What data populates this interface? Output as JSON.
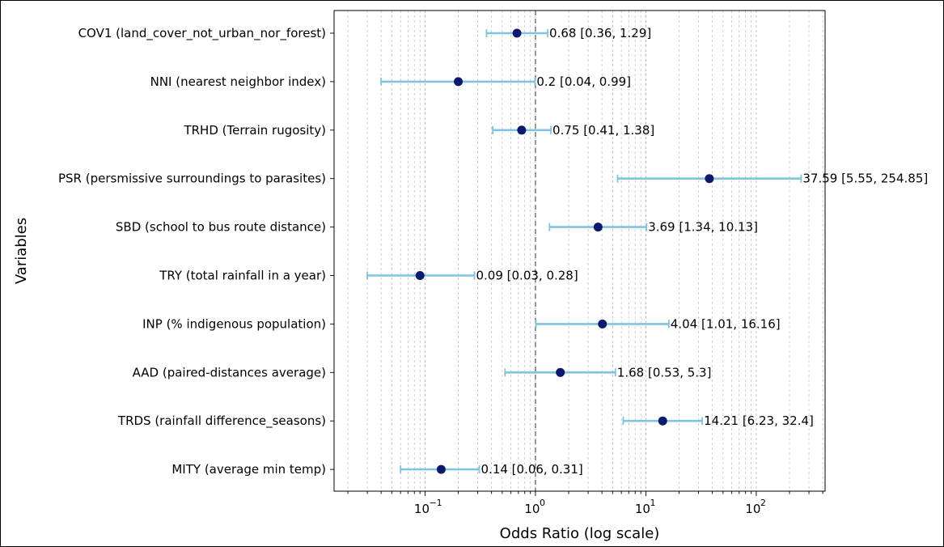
{
  "chart_data": {
    "type": "scatter",
    "subtype": "forest-plot",
    "title": "",
    "xlabel": "Odds Ratio (log scale)",
    "ylabel": "Variables",
    "xscale": "log",
    "xlim": [
      0.015,
      420
    ],
    "reference_line": 1,
    "grid": {
      "x_minor": true,
      "x_major": true,
      "y": false
    },
    "x_ticks": [
      {
        "value": 0.1,
        "base": "10",
        "exp": "−1"
      },
      {
        "value": 1,
        "base": "10",
        "exp": "0"
      },
      {
        "value": 10,
        "base": "10",
        "exp": "1"
      },
      {
        "value": 100,
        "base": "10",
        "exp": "2"
      }
    ],
    "colors": {
      "point": "#0b1a6e",
      "errorbar": "#7fc4e0",
      "reference": "#555555",
      "grid": "#bbbbbb"
    },
    "rows": [
      {
        "category": "COV1 (land_cover_not_urban_nor_forest)",
        "or": 0.68,
        "lo": 0.36,
        "hi": 1.29,
        "label": "0.68 [0.36, 1.29]"
      },
      {
        "category": "NNI (nearest neighbor index)",
        "or": 0.2,
        "lo": 0.04,
        "hi": 0.99,
        "label": "0.2 [0.04, 0.99]"
      },
      {
        "category": "TRHD (Terrain rugosity)",
        "or": 0.75,
        "lo": 0.41,
        "hi": 1.38,
        "label": "0.75 [0.41, 1.38]"
      },
      {
        "category": "PSR (persmissive surroundings to parasites)",
        "or": 37.59,
        "lo": 5.55,
        "hi": 254.85,
        "label": "37.59 [5.55, 254.85]"
      },
      {
        "category": "SBD (school to bus route distance)",
        "or": 3.69,
        "lo": 1.34,
        "hi": 10.13,
        "label": "3.69 [1.34, 10.13]"
      },
      {
        "category": "TRY (total rainfall in a year)",
        "or": 0.09,
        "lo": 0.03,
        "hi": 0.28,
        "label": "0.09 [0.03, 0.28]"
      },
      {
        "category": "INP (% indigenous population)",
        "or": 4.04,
        "lo": 1.01,
        "hi": 16.16,
        "label": "4.04 [1.01, 16.16]"
      },
      {
        "category": "AAD (paired-distances average)",
        "or": 1.68,
        "lo": 0.53,
        "hi": 5.3,
        "label": "1.68 [0.53, 5.3]"
      },
      {
        "category": "TRDS (rainfall difference_seasons)",
        "or": 14.21,
        "lo": 6.23,
        "hi": 32.4,
        "label": "14.21 [6.23, 32.4]"
      },
      {
        "category": "MITY (average min temp)",
        "or": 0.14,
        "lo": 0.06,
        "hi": 0.31,
        "label": "0.14 [0.06, 0.31]"
      }
    ]
  }
}
